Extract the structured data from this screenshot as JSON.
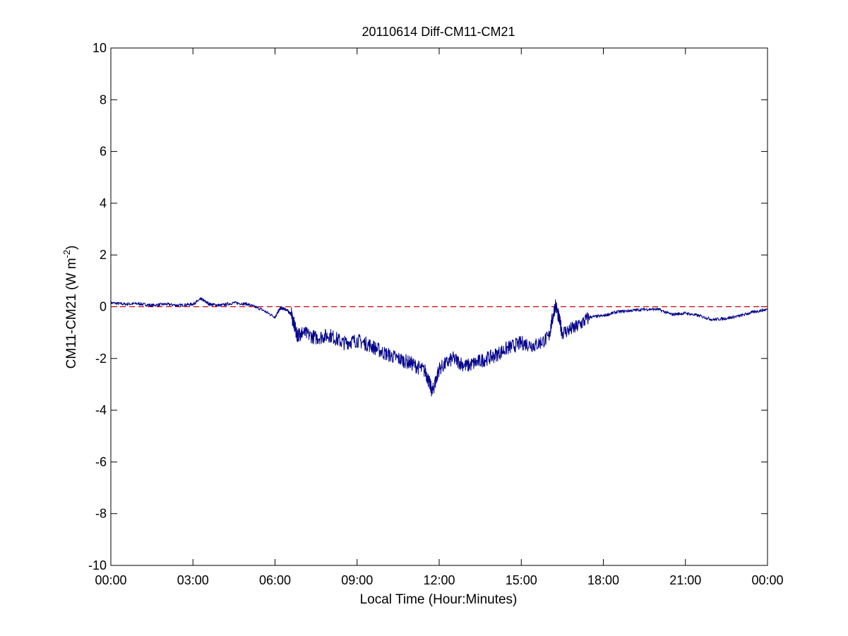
{
  "chart_data": {
    "type": "line",
    "title": "20110614 Diff-CM11-CM21",
    "xlabel": "Local Time (Hour:Minutes)",
    "ylabel": "CM11-CM21 (W m",
    "ylabel_sup": "-2",
    "ylabel_close": ")",
    "xlim": [
      0,
      24
    ],
    "ylim": [
      -10,
      10
    ],
    "x_ticks": [
      0,
      3,
      6,
      9,
      12,
      15,
      18,
      21,
      24
    ],
    "x_tick_labels": [
      "00:00",
      "03:00",
      "06:00",
      "09:00",
      "12:00",
      "15:00",
      "18:00",
      "21:00",
      "00:00"
    ],
    "y_ticks": [
      -10,
      -8,
      -6,
      -4,
      -2,
      0,
      2,
      4,
      6,
      8,
      10
    ],
    "y_tick_labels": [
      "-10",
      "-8",
      "-6",
      "-4",
      "-2",
      "0",
      "2",
      "4",
      "6",
      "8",
      "10"
    ],
    "grid": false,
    "reference_line": {
      "y": 0,
      "style": "dashed",
      "color": "#cc0000"
    },
    "series_color": "#00008b",
    "series": [
      {
        "x": [
          0,
          0.5,
          1,
          1.5,
          2,
          2.5,
          3,
          3.3,
          3.6,
          4,
          4.5,
          5,
          5.5,
          6,
          6.2,
          6.4,
          6.6,
          6.8,
          7,
          7.5,
          8,
          8.5,
          9,
          9.5,
          10,
          10.5,
          11,
          11.5,
          11.75,
          12,
          12.5,
          13,
          13.5,
          14,
          14.5,
          15,
          15.5,
          16,
          16.25,
          16.5,
          17,
          17.5,
          18,
          18.5,
          19,
          19.5,
          20,
          20.5,
          21,
          21.5,
          22,
          22.5,
          23,
          23.5,
          24
        ],
        "y": [
          0.15,
          0.1,
          0.12,
          0.05,
          0.1,
          0.05,
          0.1,
          0.3,
          0.1,
          0.05,
          0.15,
          0.1,
          -0.1,
          -0.4,
          -0.05,
          -0.1,
          -0.3,
          -1.1,
          -1.0,
          -1.2,
          -1.1,
          -1.4,
          -1.3,
          -1.5,
          -1.8,
          -2.0,
          -2.2,
          -2.5,
          -3.3,
          -2.4,
          -2.0,
          -2.3,
          -2.1,
          -1.9,
          -1.6,
          -1.4,
          -1.5,
          -1.2,
          0.1,
          -1.0,
          -0.8,
          -0.4,
          -0.35,
          -0.2,
          -0.15,
          -0.1,
          -0.1,
          -0.3,
          -0.25,
          -0.35,
          -0.5,
          -0.45,
          -0.35,
          -0.2,
          -0.1
        ]
      }
    ]
  }
}
